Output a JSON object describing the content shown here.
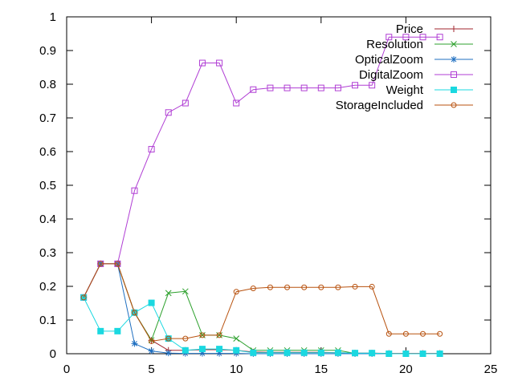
{
  "chart_data": {
    "type": "line",
    "title": "",
    "xlabel": "",
    "ylabel": "",
    "xlim": [
      0,
      25
    ],
    "ylim": [
      0,
      1
    ],
    "xticks": [
      "0",
      "5",
      "10",
      "15",
      "20",
      "25"
    ],
    "yticks": [
      "0",
      "0.1",
      "0.2",
      "0.3",
      "0.4",
      "0.5",
      "0.6",
      "0.7",
      "0.8",
      "0.9",
      "1"
    ],
    "grid": false,
    "legend_position": "top-right",
    "x": [
      1,
      2,
      3,
      4,
      5,
      6,
      7,
      8,
      9,
      10,
      11,
      12,
      13,
      14,
      15,
      16,
      17,
      18,
      19,
      20,
      21,
      22
    ],
    "series": [
      {
        "name": "Price",
        "color": "#a0252d",
        "marker": "plus",
        "values": [
          0.167,
          0.267,
          0.267,
          0.122,
          0.04,
          0.01,
          0.01,
          0.012,
          0.012,
          0.01,
          0.005,
          0.004,
          0.004,
          0.004,
          0.004,
          0.003,
          0.002,
          0.002,
          0.001,
          0.001,
          0.001,
          0.001
        ]
      },
      {
        "name": "Resolution",
        "color": "#2ca02c",
        "marker": "x",
        "values": [
          0.167,
          0.267,
          0.267,
          0.122,
          0.04,
          0.18,
          0.185,
          0.055,
          0.055,
          0.045,
          0.01,
          0.01,
          0.01,
          0.01,
          0.01,
          0.01,
          0.001,
          0.001,
          0.0,
          0.0,
          0.0,
          0.0
        ]
      },
      {
        "name": "OpticalZoom",
        "color": "#1f6fc0",
        "marker": "star",
        "values": [
          0.167,
          0.267,
          0.267,
          0.03,
          0.008,
          0.002,
          0.001,
          0.001,
          0.001,
          0.001,
          0.0,
          0.0,
          0.0,
          0.0,
          0.0,
          0.0,
          0.0,
          0.0,
          0.0,
          0.0,
          0.0,
          0.0
        ]
      },
      {
        "name": "DigitalZoom",
        "color": "#b03ed4",
        "marker": "open-square",
        "values": [
          0.167,
          0.267,
          0.267,
          0.484,
          0.607,
          0.716,
          0.744,
          0.863,
          0.863,
          0.744,
          0.784,
          0.789,
          0.789,
          0.789,
          0.789,
          0.789,
          0.797,
          0.797,
          0.94,
          0.94,
          0.94,
          0.94
        ]
      },
      {
        "name": "Weight",
        "color": "#1ad8e0",
        "marker": "filled-square",
        "values": [
          0.167,
          0.067,
          0.067,
          0.122,
          0.151,
          0.045,
          0.01,
          0.014,
          0.014,
          0.01,
          0.003,
          0.003,
          0.003,
          0.003,
          0.003,
          0.003,
          0.002,
          0.002,
          0.0,
          0.0,
          0.0,
          0.0
        ]
      },
      {
        "name": "StorageIncluded",
        "color": "#b8520f",
        "marker": "open-circle",
        "values": [
          0.167,
          0.267,
          0.267,
          0.122,
          0.037,
          0.045,
          0.045,
          0.055,
          0.055,
          0.184,
          0.194,
          0.197,
          0.197,
          0.197,
          0.197,
          0.197,
          0.199,
          0.199,
          0.059,
          0.059,
          0.059,
          0.059
        ]
      }
    ]
  }
}
